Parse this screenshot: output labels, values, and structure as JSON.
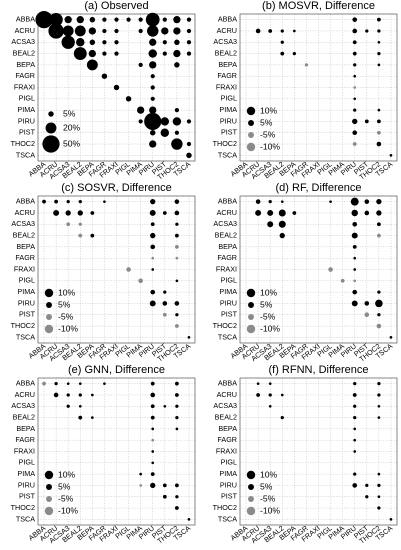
{
  "species": [
    "ABBA",
    "ACRU",
    "ACSA3",
    "BEAL2",
    "BEPA",
    "FAGR",
    "FRAXI",
    "PIGL",
    "PIMA",
    "PIRU",
    "PIST",
    "THOC2",
    "TSCA"
  ],
  "colors": {
    "positive": "#000000",
    "negative": "#8a8a8a"
  },
  "chart_data": [
    {
      "type": "scatter",
      "title": "(a) Observed",
      "legend_loc": "bottom-left",
      "legend": [
        {
          "label": "5%",
          "value": 5,
          "sign": 1
        },
        {
          "label": "20%",
          "value": 20,
          "sign": 1
        },
        {
          "label": "50%",
          "value": 50,
          "sign": 1
        }
      ],
      "points": [
        [
          0,
          0,
          50
        ],
        [
          0,
          1,
          30
        ],
        [
          0,
          2,
          9
        ],
        [
          0,
          3,
          9
        ],
        [
          0,
          4,
          5
        ],
        [
          0,
          5,
          3
        ],
        [
          0,
          6,
          3
        ],
        [
          0,
          7,
          3
        ],
        [
          0,
          8,
          3
        ],
        [
          0,
          9,
          32
        ],
        [
          0,
          10,
          3
        ],
        [
          0,
          11,
          9
        ],
        [
          0,
          12,
          3
        ],
        [
          1,
          1,
          40
        ],
        [
          1,
          2,
          20
        ],
        [
          1,
          3,
          20
        ],
        [
          1,
          4,
          9
        ],
        [
          1,
          5,
          3
        ],
        [
          1,
          6,
          3
        ],
        [
          1,
          8,
          3
        ],
        [
          1,
          9,
          22
        ],
        [
          1,
          10,
          9
        ],
        [
          1,
          11,
          9
        ],
        [
          1,
          12,
          3
        ],
        [
          2,
          2,
          30
        ],
        [
          2,
          3,
          12
        ],
        [
          2,
          4,
          5
        ],
        [
          2,
          5,
          3
        ],
        [
          2,
          6,
          3
        ],
        [
          2,
          9,
          9
        ],
        [
          2,
          10,
          3
        ],
        [
          2,
          11,
          5
        ],
        [
          2,
          12,
          3
        ],
        [
          3,
          3,
          28
        ],
        [
          3,
          4,
          9
        ],
        [
          3,
          5,
          3
        ],
        [
          3,
          6,
          3
        ],
        [
          3,
          9,
          12
        ],
        [
          3,
          10,
          3
        ],
        [
          3,
          11,
          9
        ],
        [
          3,
          12,
          3
        ],
        [
          4,
          4,
          20
        ],
        [
          4,
          8,
          3
        ],
        [
          4,
          9,
          9
        ],
        [
          4,
          11,
          5
        ],
        [
          5,
          5,
          5
        ],
        [
          5,
          9,
          3
        ],
        [
          6,
          6,
          5
        ],
        [
          6,
          9,
          3
        ],
        [
          7,
          7,
          5
        ],
        [
          7,
          9,
          3
        ],
        [
          8,
          8,
          9
        ],
        [
          8,
          9,
          9
        ],
        [
          8,
          11,
          3
        ],
        [
          9,
          8,
          3
        ],
        [
          9,
          9,
          50
        ],
        [
          9,
          10,
          12
        ],
        [
          9,
          11,
          12
        ],
        [
          9,
          12,
          3
        ],
        [
          10,
          9,
          5
        ],
        [
          10,
          10,
          12
        ],
        [
          10,
          11,
          3
        ],
        [
          11,
          9,
          9
        ],
        [
          11,
          11,
          22
        ],
        [
          11,
          12,
          3
        ],
        [
          12,
          12,
          5
        ]
      ]
    },
    {
      "type": "scatter",
      "title": "(b) MOSVR, Difference",
      "legend_loc": "bottom-left",
      "legend": [
        {
          "label": "10%",
          "value": 10,
          "sign": 1
        },
        {
          "label": "5%",
          "value": 5,
          "sign": 1
        },
        {
          "label": "-5%",
          "value": 5,
          "sign": -1
        },
        {
          "label": "-10%",
          "value": 10,
          "sign": -1
        }
      ],
      "points": [
        [
          0,
          9,
          3
        ],
        [
          0,
          11,
          2
        ],
        [
          1,
          1,
          3
        ],
        [
          1,
          2,
          2
        ],
        [
          1,
          3,
          1.5
        ],
        [
          1,
          4,
          1
        ],
        [
          1,
          9,
          3
        ],
        [
          1,
          10,
          1.5
        ],
        [
          1,
          11,
          1.5
        ],
        [
          2,
          3,
          1.5
        ],
        [
          2,
          9,
          2
        ],
        [
          2,
          11,
          1
        ],
        [
          3,
          3,
          2
        ],
        [
          3,
          4,
          1.5
        ],
        [
          3,
          9,
          2
        ],
        [
          3,
          11,
          1.5
        ],
        [
          4,
          5,
          -1.5
        ],
        [
          4,
          9,
          1.5
        ],
        [
          4,
          11,
          1
        ],
        [
          5,
          9,
          1
        ],
        [
          6,
          9,
          -1
        ],
        [
          7,
          9,
          1
        ],
        [
          8,
          9,
          1.5
        ],
        [
          8,
          11,
          1
        ],
        [
          9,
          9,
          4
        ],
        [
          9,
          10,
          2
        ],
        [
          9,
          11,
          2
        ],
        [
          10,
          9,
          3
        ],
        [
          10,
          11,
          -2
        ],
        [
          11,
          9,
          -2
        ],
        [
          11,
          11,
          3
        ],
        [
          12,
          12,
          1
        ]
      ]
    },
    {
      "type": "scatter",
      "title": "(c) SOSVR, Difference",
      "legend_loc": "bottom-left",
      "legend": [
        {
          "label": "10%",
          "value": 10,
          "sign": 1
        },
        {
          "label": "5%",
          "value": 5,
          "sign": 1
        },
        {
          "label": "-5%",
          "value": 5,
          "sign": -1
        },
        {
          "label": "-10%",
          "value": 10,
          "sign": -1
        }
      ],
      "points": [
        [
          0,
          0,
          2
        ],
        [
          0,
          1,
          2
        ],
        [
          0,
          2,
          1.5
        ],
        [
          0,
          3,
          1.5
        ],
        [
          0,
          5,
          1
        ],
        [
          0,
          9,
          4
        ],
        [
          0,
          11,
          3
        ],
        [
          1,
          1,
          5
        ],
        [
          1,
          2,
          4
        ],
        [
          1,
          3,
          4
        ],
        [
          1,
          4,
          2
        ],
        [
          1,
          9,
          5
        ],
        [
          1,
          10,
          2
        ],
        [
          1,
          11,
          3
        ],
        [
          2,
          2,
          -2
        ],
        [
          2,
          3,
          -1.5
        ],
        [
          2,
          9,
          2
        ],
        [
          2,
          11,
          1.5
        ],
        [
          3,
          3,
          -2
        ],
        [
          3,
          4,
          2
        ],
        [
          3,
          9,
          4
        ],
        [
          3,
          11,
          2
        ],
        [
          4,
          9,
          3
        ],
        [
          4,
          11,
          -2
        ],
        [
          5,
          9,
          -1
        ],
        [
          5,
          11,
          -1
        ],
        [
          6,
          7,
          -3
        ],
        [
          6,
          9,
          1
        ],
        [
          7,
          8,
          -3
        ],
        [
          7,
          11,
          1
        ],
        [
          8,
          9,
          3
        ],
        [
          8,
          10,
          1.5
        ],
        [
          9,
          9,
          5
        ],
        [
          9,
          10,
          3
        ],
        [
          9,
          11,
          3
        ],
        [
          10,
          10,
          -2
        ],
        [
          10,
          11,
          1.5
        ],
        [
          11,
          11,
          -2
        ],
        [
          12,
          12,
          1
        ]
      ]
    },
    {
      "type": "scatter",
      "title": "(d) RF, Difference",
      "legend_loc": "bottom-left",
      "legend": [
        {
          "label": "10%",
          "value": 10,
          "sign": 1
        },
        {
          "label": "5%",
          "value": 5,
          "sign": 1
        },
        {
          "label": "-5%",
          "value": 5,
          "sign": -1
        },
        {
          "label": "-10%",
          "value": 10,
          "sign": -1
        }
      ],
      "points": [
        [
          0,
          1,
          3
        ],
        [
          0,
          2,
          1.5
        ],
        [
          0,
          3,
          1
        ],
        [
          0,
          7,
          1
        ],
        [
          0,
          9,
          9
        ],
        [
          0,
          10,
          3
        ],
        [
          0,
          11,
          4
        ],
        [
          1,
          1,
          5
        ],
        [
          1,
          2,
          5
        ],
        [
          1,
          3,
          7
        ],
        [
          1,
          4,
          2
        ],
        [
          1,
          9,
          6
        ],
        [
          1,
          10,
          3
        ],
        [
          1,
          11,
          4
        ],
        [
          2,
          2,
          5
        ],
        [
          2,
          3,
          7
        ],
        [
          2,
          9,
          3
        ],
        [
          2,
          11,
          2
        ],
        [
          3,
          3,
          4
        ],
        [
          3,
          9,
          5
        ],
        [
          3,
          11,
          -2
        ],
        [
          4,
          9,
          2
        ],
        [
          5,
          9,
          1
        ],
        [
          6,
          7,
          -3
        ],
        [
          6,
          9,
          1
        ],
        [
          7,
          8,
          -2
        ],
        [
          7,
          9,
          -1
        ],
        [
          8,
          9,
          3
        ],
        [
          8,
          11,
          1.5
        ],
        [
          9,
          9,
          5
        ],
        [
          9,
          10,
          3
        ],
        [
          9,
          11,
          8
        ],
        [
          10,
          10,
          -3
        ],
        [
          10,
          11,
          1.5
        ],
        [
          11,
          11,
          -3
        ],
        [
          12,
          12,
          1
        ]
      ]
    },
    {
      "type": "scatter",
      "title": "(e) GNN, Difference",
      "legend_loc": "bottom-left",
      "legend": [
        {
          "label": "10%",
          "value": 10,
          "sign": 1
        },
        {
          "label": "5%",
          "value": 5,
          "sign": 1
        },
        {
          "label": "-5%",
          "value": 5,
          "sign": -1
        },
        {
          "label": "-10%",
          "value": 10,
          "sign": -1
        }
      ],
      "points": [
        [
          0,
          0,
          -2
        ],
        [
          0,
          1,
          1.5
        ],
        [
          0,
          2,
          1
        ],
        [
          0,
          3,
          1
        ],
        [
          0,
          5,
          1
        ],
        [
          0,
          9,
          2
        ],
        [
          0,
          11,
          2
        ],
        [
          1,
          1,
          3
        ],
        [
          1,
          2,
          1.5
        ],
        [
          1,
          3,
          1.5
        ],
        [
          1,
          4,
          1
        ],
        [
          1,
          9,
          3
        ],
        [
          1,
          11,
          2
        ],
        [
          2,
          2,
          1.5
        ],
        [
          2,
          3,
          1
        ],
        [
          2,
          9,
          2
        ],
        [
          2,
          10,
          1
        ],
        [
          2,
          11,
          1.5
        ],
        [
          3,
          3,
          2
        ],
        [
          3,
          4,
          1
        ],
        [
          3,
          9,
          2
        ],
        [
          3,
          11,
          1.5
        ],
        [
          4,
          9,
          1
        ],
        [
          4,
          11,
          1
        ],
        [
          5,
          9,
          -1
        ],
        [
          6,
          9,
          1
        ],
        [
          7,
          9,
          1
        ],
        [
          8,
          8,
          1
        ],
        [
          8,
          9,
          2
        ],
        [
          9,
          8,
          -1
        ],
        [
          9,
          9,
          4
        ],
        [
          9,
          10,
          2
        ],
        [
          9,
          11,
          2
        ],
        [
          10,
          10,
          2
        ],
        [
          10,
          11,
          1.5
        ],
        [
          11,
          11,
          2
        ],
        [
          12,
          12,
          1
        ]
      ]
    },
    {
      "type": "scatter",
      "title": "(f) RFNN, Difference",
      "legend_loc": "bottom-left",
      "legend": [
        {
          "label": "10%",
          "value": 10,
          "sign": 1
        },
        {
          "label": "5%",
          "value": 5,
          "sign": 1
        },
        {
          "label": "-5%",
          "value": 5,
          "sign": -1
        },
        {
          "label": "-10%",
          "value": 10,
          "sign": -1
        }
      ],
      "points": [
        [
          0,
          1,
          1
        ],
        [
          0,
          2,
          1
        ],
        [
          0,
          9,
          1.5
        ],
        [
          0,
          11,
          1.5
        ],
        [
          1,
          1,
          2
        ],
        [
          1,
          2,
          1.5
        ],
        [
          1,
          3,
          1
        ],
        [
          1,
          9,
          2
        ],
        [
          1,
          11,
          1.5
        ],
        [
          2,
          2,
          1
        ],
        [
          2,
          9,
          1.5
        ],
        [
          2,
          11,
          1
        ],
        [
          3,
          3,
          1.5
        ],
        [
          3,
          9,
          1.5
        ],
        [
          3,
          11,
          1
        ],
        [
          4,
          9,
          1
        ],
        [
          5,
          9,
          1
        ],
        [
          6,
          9,
          1
        ],
        [
          8,
          9,
          1.5
        ],
        [
          8,
          11,
          1
        ],
        [
          9,
          9,
          3
        ],
        [
          9,
          10,
          1.5
        ],
        [
          9,
          11,
          1.5
        ],
        [
          10,
          10,
          1.5
        ],
        [
          10,
          11,
          1
        ],
        [
          11,
          11,
          1.5
        ],
        [
          12,
          12,
          1
        ]
      ]
    }
  ]
}
